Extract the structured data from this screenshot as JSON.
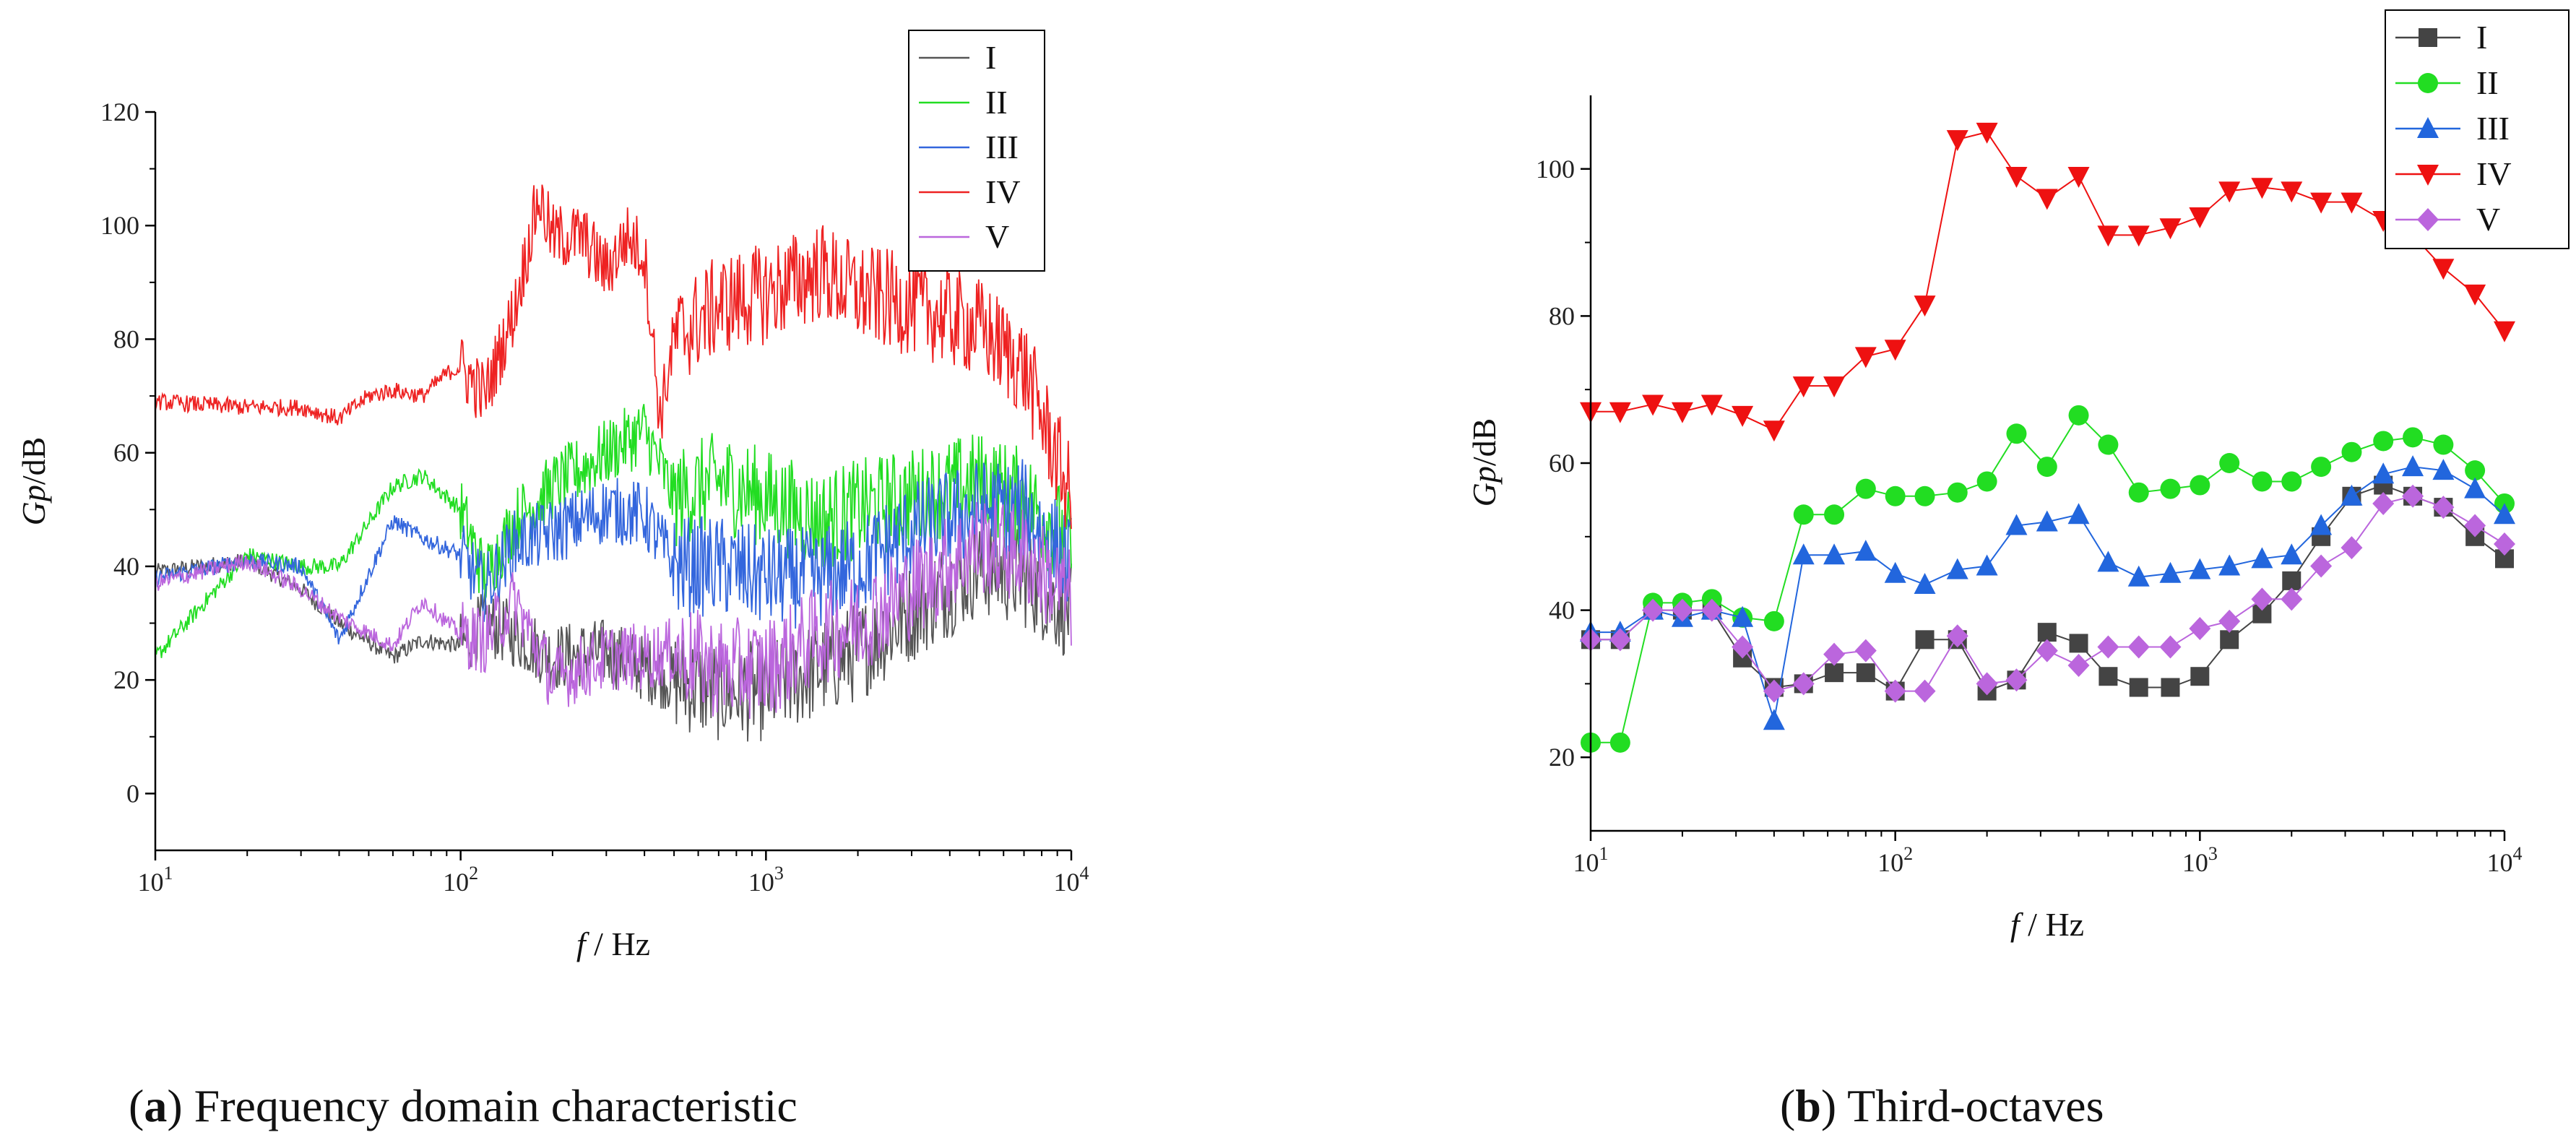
{
  "chart_data": [
    {
      "panel": "a",
      "type": "line",
      "title": "",
      "xscale": "log",
      "xlim": [
        10,
        10000
      ],
      "ylim": [
        -10,
        120
      ],
      "yticks": [
        0,
        20,
        40,
        60,
        80,
        100,
        120
      ],
      "xticks": [
        10,
        100,
        1000,
        10000
      ],
      "xtick_labels": [
        {
          "base": "10",
          "exp": "1"
        },
        {
          "base": "10",
          "exp": "2"
        },
        {
          "base": "10",
          "exp": "3"
        },
        {
          "base": "10",
          "exp": "4"
        }
      ],
      "xlabel": {
        "var": "f",
        "unit": " / Hz"
      },
      "ylabel": {
        "var": "Gp",
        "unit": "/dB"
      },
      "legend_position": "top-right",
      "series": [
        {
          "name": "I",
          "color": "#555555",
          "x": [
            10,
            20,
            30,
            40,
            60,
            75,
            100,
            120,
            150,
            200,
            300,
            400,
            500,
            700,
            1000,
            1500,
            2000,
            3000,
            5000,
            7000,
            10000
          ],
          "values": [
            39,
            41,
            36,
            30,
            24,
            27,
            26,
            30,
            28,
            24,
            25,
            22,
            20,
            18,
            18,
            22,
            25,
            32,
            40,
            38,
            32
          ]
        },
        {
          "name": "II",
          "color": "#22dd22",
          "x": [
            10,
            20,
            30,
            40,
            60,
            75,
            100,
            120,
            150,
            200,
            300,
            400,
            500,
            700,
            1000,
            1500,
            2000,
            3000,
            5000,
            7000,
            10000
          ],
          "values": [
            24,
            42,
            40,
            40,
            54,
            56,
            50,
            38,
            48,
            54,
            60,
            64,
            52,
            55,
            52,
            48,
            50,
            52,
            55,
            52,
            44
          ]
        },
        {
          "name": "III",
          "color": "#3366dd",
          "x": [
            10,
            20,
            30,
            40,
            60,
            75,
            100,
            120,
            150,
            200,
            300,
            400,
            500,
            700,
            1000,
            1500,
            2000,
            3000,
            5000,
            7000,
            10000
          ],
          "values": [
            38,
            41,
            40,
            27,
            48,
            45,
            42,
            36,
            44,
            46,
            50,
            49,
            40,
            40,
            38,
            38,
            40,
            46,
            50,
            50,
            40
          ]
        },
        {
          "name": "IV",
          "color": "#ee2222",
          "x": [
            10,
            20,
            30,
            40,
            50,
            60,
            75,
            90,
            100,
            120,
            150,
            180,
            200,
            250,
            300,
            350,
            400,
            450,
            500,
            700,
            1000,
            1500,
            2000,
            3000,
            5000,
            7000,
            10000
          ],
          "values": [
            69,
            68,
            68,
            66,
            70,
            71,
            70,
            74,
            75,
            70,
            85,
            105,
            98,
            98,
            92,
            98,
            95,
            66,
            80,
            86,
            88,
            92,
            88,
            86,
            82,
            75,
            52
          ]
        },
        {
          "name": "V",
          "color": "#bb66dd",
          "x": [
            10,
            20,
            30,
            40,
            60,
            75,
            100,
            120,
            150,
            200,
            300,
            400,
            500,
            700,
            1000,
            1500,
            2000,
            3000,
            5000,
            7000,
            10000
          ],
          "values": [
            37,
            41,
            36,
            31,
            26,
            34,
            28,
            27,
            34,
            20,
            24,
            24,
            25,
            22,
            22,
            28,
            30,
            36,
            44,
            42,
            34
          ]
        }
      ]
    },
    {
      "panel": "b",
      "type": "line",
      "title": "",
      "xscale": "log",
      "xlim": [
        10,
        10000
      ],
      "ylim": [
        10,
        110
      ],
      "yticks": [
        20,
        40,
        60,
        80,
        100
      ],
      "xticks": [
        10,
        100,
        1000,
        10000
      ],
      "xtick_labels": [
        {
          "base": "10",
          "exp": "1"
        },
        {
          "base": "10",
          "exp": "2"
        },
        {
          "base": "10",
          "exp": "3"
        },
        {
          "base": "10",
          "exp": "4"
        }
      ],
      "xlabel": {
        "var": "f",
        "unit": " / Hz"
      },
      "ylabel": {
        "var": "Gp",
        "unit": "/dB"
      },
      "legend_position": "top-right",
      "x": [
        10,
        12.5,
        16,
        20,
        25,
        31.5,
        40,
        50,
        63,
        80,
        100,
        125,
        160,
        200,
        250,
        315,
        400,
        500,
        630,
        800,
        1000,
        1250,
        1600,
        2000,
        2500,
        3150,
        4000,
        5000,
        6300,
        8000,
        10000
      ],
      "series": [
        {
          "name": "I",
          "color": "#444444",
          "marker": "square",
          "values": [
            36,
            36,
            40,
            40,
            40,
            33.5,
            29.5,
            30,
            31.5,
            31.5,
            29,
            36,
            36,
            29,
            30.5,
            37,
            35.5,
            31,
            29.5,
            29.5,
            31,
            36,
            39.5,
            44,
            50,
            55.5,
            57,
            55.5,
            54,
            50,
            47
          ]
        },
        {
          "name": "II",
          "color": "#22dd22",
          "marker": "circle",
          "values": [
            22,
            22,
            41,
            41,
            41.5,
            39,
            38.5,
            53,
            53,
            56.5,
            55.5,
            55.5,
            56,
            57.5,
            64,
            59.5,
            66.5,
            62.5,
            56,
            56.5,
            57,
            60,
            57.5,
            57.5,
            59.5,
            61.5,
            63,
            63.5,
            62.5,
            59,
            54.5
          ]
        },
        {
          "name": "III",
          "color": "#2266dd",
          "marker": "triangle-up",
          "values": [
            37,
            37,
            40,
            39,
            40,
            39,
            25,
            47.5,
            47.5,
            48,
            45,
            43.5,
            45.5,
            46,
            51.5,
            52,
            53,
            46.5,
            44.5,
            45,
            45.5,
            46,
            47,
            47.5,
            51.5,
            55.5,
            58.5,
            59.5,
            59,
            56.5,
            53
          ]
        },
        {
          "name": "IV",
          "color": "#ee1111",
          "marker": "triangle-down",
          "values": [
            67,
            67,
            68,
            67,
            68,
            66.5,
            64.5,
            70.5,
            70.5,
            74.5,
            75.5,
            81.5,
            104,
            105,
            99,
            96,
            99,
            91,
            91,
            92,
            93.5,
            97,
            97.5,
            97,
            95.5,
            95.5,
            93,
            91,
            86.5,
            83,
            78
          ]
        },
        {
          "name": "V",
          "color": "#bb66dd",
          "marker": "diamond",
          "values": [
            36,
            36,
            40,
            40,
            40,
            35,
            29,
            30,
            34,
            34.5,
            29,
            29,
            36.5,
            30,
            30.5,
            34.5,
            32.5,
            35,
            35,
            35,
            37.5,
            38.5,
            41.5,
            41.5,
            46,
            48.5,
            54.5,
            55.5,
            54,
            51.5,
            49
          ]
        }
      ]
    }
  ],
  "captions": {
    "a": {
      "label": "a",
      "text": " Frequency domain characteristic"
    },
    "b": {
      "label": "b",
      "text": " Third-octaves"
    }
  }
}
